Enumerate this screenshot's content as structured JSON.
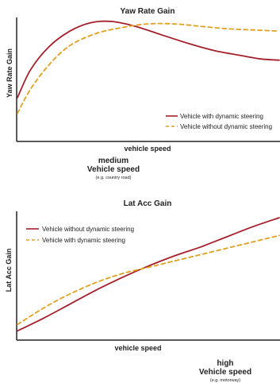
{
  "chart_data": [
    {
      "type": "line",
      "title": "Yaw Rate Gain",
      "xlabel": "vehicle speed",
      "ylabel": "Yaw Rate Gain",
      "series": [
        {
          "name": "Vehicle with dynamic steering",
          "color": "#a5202a",
          "style": "solid",
          "points": [
            [
              0,
              0.35
            ],
            [
              0.05,
              0.58
            ],
            [
              0.12,
              0.77
            ],
            [
              0.2,
              0.9
            ],
            [
              0.28,
              0.97
            ],
            [
              0.36,
              0.98
            ],
            [
              0.45,
              0.94
            ],
            [
              0.55,
              0.87
            ],
            [
              0.65,
              0.8
            ],
            [
              0.75,
              0.74
            ],
            [
              0.85,
              0.7
            ],
            [
              0.93,
              0.67
            ],
            [
              1,
              0.66
            ]
          ]
        },
        {
          "name": "Vehicle without dynamic steering",
          "color": "#e0a020",
          "style": "dashed",
          "points": [
            [
              0,
              0.22
            ],
            [
              0.05,
              0.42
            ],
            [
              0.12,
              0.62
            ],
            [
              0.2,
              0.78
            ],
            [
              0.3,
              0.88
            ],
            [
              0.4,
              0.93
            ],
            [
              0.5,
              0.96
            ],
            [
              0.6,
              0.96
            ],
            [
              0.7,
              0.94
            ],
            [
              0.8,
              0.92
            ],
            [
              0.9,
              0.91
            ],
            [
              1,
              0.9
            ]
          ]
        }
      ],
      "legend": "bottom-right",
      "grid": false,
      "annotation": {
        "level": "medium",
        "label": "Vehicle speed",
        "example": "(e.g. country road)"
      }
    },
    {
      "type": "line",
      "title": "Lat Acc Gain",
      "xlabel": "vehicle speed",
      "ylabel": "Lat Acc Gain",
      "series": [
        {
          "name": "Vehicle without dynamic steering",
          "color": "#a5202a",
          "style": "solid",
          "points": [
            [
              0,
              0.06
            ],
            [
              0.1,
              0.16
            ],
            [
              0.2,
              0.27
            ],
            [
              0.3,
              0.38
            ],
            [
              0.4,
              0.48
            ],
            [
              0.5,
              0.57
            ],
            [
              0.6,
              0.65
            ],
            [
              0.7,
              0.72
            ],
            [
              0.8,
              0.8
            ],
            [
              0.9,
              0.88
            ],
            [
              1,
              0.95
            ]
          ]
        },
        {
          "name": "Vehicle with dynamic steering",
          "color": "#e0a020",
          "style": "dashed",
          "points": [
            [
              0,
              0.11
            ],
            [
              0.1,
              0.24
            ],
            [
              0.2,
              0.35
            ],
            [
              0.3,
              0.44
            ],
            [
              0.4,
              0.51
            ],
            [
              0.5,
              0.56
            ],
            [
              0.6,
              0.61
            ],
            [
              0.7,
              0.66
            ],
            [
              0.8,
              0.71
            ],
            [
              0.9,
              0.76
            ],
            [
              1,
              0.81
            ]
          ]
        }
      ],
      "legend": "top-left",
      "grid": false,
      "annotation": {
        "level": "high",
        "label": "Vehicle speed",
        "example": "(e.g. motorway)"
      }
    }
  ]
}
